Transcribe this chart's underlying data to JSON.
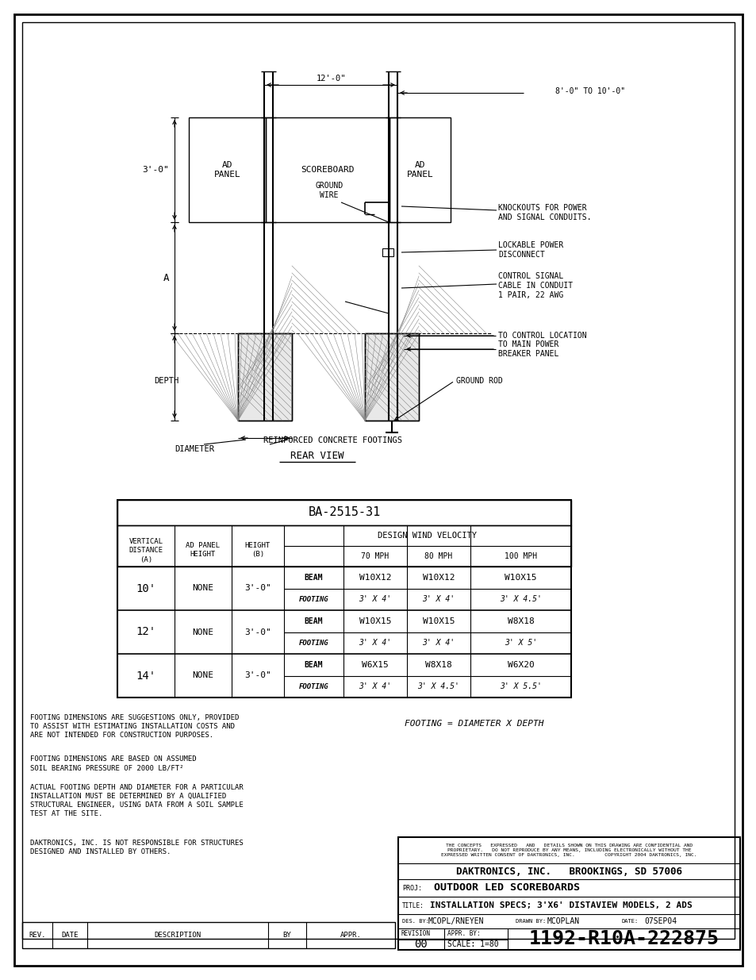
{
  "page_bg": "#ffffff",
  "line_color": "#000000",
  "text_color": "#000000",
  "table": {
    "title": "BA-2515-31",
    "rows": [
      {
        "vert": "10'",
        "ad": "NONE",
        "height": "3'-0\"",
        "beam70": "W10X12",
        "beam80": "W10X12",
        "beam100": "W10X15",
        "foot70": "3' X 4'",
        "foot80": "3' X 4'",
        "foot100": "3' X 4.5'"
      },
      {
        "vert": "12'",
        "ad": "NONE",
        "height": "3'-0\"",
        "beam70": "W10X15",
        "beam80": "W10X15",
        "beam100": "W8X18",
        "foot70": "3' X 4'",
        "foot80": "3' X 4'",
        "foot100": "3' X 5'"
      },
      {
        "vert": "14'",
        "ad": "NONE",
        "height": "3'-0\"",
        "beam70": "W6X15",
        "beam80": "W8X18",
        "beam100": "W6X20",
        "foot70": "3' X 4'",
        "foot80": "3' X 4.5'",
        "foot100": "3' X 5.5'"
      }
    ]
  },
  "notes": [
    "FOOTING DIMENSIONS ARE SUGGESTIONS ONLY, PROVIDED\nTO ASSIST WITH ESTIMATING INSTALLATION COSTS AND\nARE NOT INTENDED FOR CONSTRUCTION PURPOSES.",
    "FOOTING DIMENSIONS ARE BASED ON ASSUMED\nSOIL BEARING PRESSURE OF 2000 LB/FT²",
    "ACTUAL FOOTING DEPTH AND DIAMETER FOR A PARTICULAR\nINSTALLATION MUST BE DETERMINED BY A QUALIFIED\nSTRUCTURAL ENGINEER, USING DATA FROM A SOIL SAMPLE\nTEST AT THE SITE.",
    "DAKTRONICS, INC. IS NOT RESPONSIBLE FOR STRUCTURES\nDESIGNED AND INSTALLED BY OTHERS."
  ],
  "footing_note": "FOOTING = DIAMETER X DEPTH",
  "title_block": {
    "company": "DAKTRONICS, INC.   BROOKINGS, SD 57006",
    "proj_label": "PROJ:",
    "proj": "OUTDOOR LED SCOREBOARDS",
    "title_label": "TITLE:",
    "title_text": "INSTALLATION SPECS; 3'X6' DISTAVIEW MODELS, 2 ADS",
    "des_label": "DES. BY:",
    "des": "MCOPL/RNEYEN",
    "drawn_label": "DRAWN BY:",
    "drawn": "MCOPLAN",
    "date_label": "DATE:",
    "date": "07SEP04",
    "confidential": "THE CONCEPTS   EXPRESSED   AND   DETAILS SHOWN ON THIS DRAWING ARE CONFIDENTIAL AND\nPROPRIETARY.   DO NOT REPRODUCE BY ANY MEANS, INCLUDING ELECTRONICALLY WITHOUT THE\nEXPRESSED WRITTEN CONSENT OF DAKTRONICS, INC.          COPYRIGHT 2004 DAKTRONICS, INC.",
    "revision": "REVISION",
    "rev_num": "00",
    "scale_label": "SCALE:",
    "scale": "1=80",
    "appr_label": "APPR. BY:",
    "drawing_num": "1192-R10A-222875"
  },
  "revision_block": {
    "rev_label": "REV.",
    "date_label": "DATE",
    "desc_label": "DESCRIPTION",
    "by_label": "BY",
    "appr_label": "APPR."
  }
}
